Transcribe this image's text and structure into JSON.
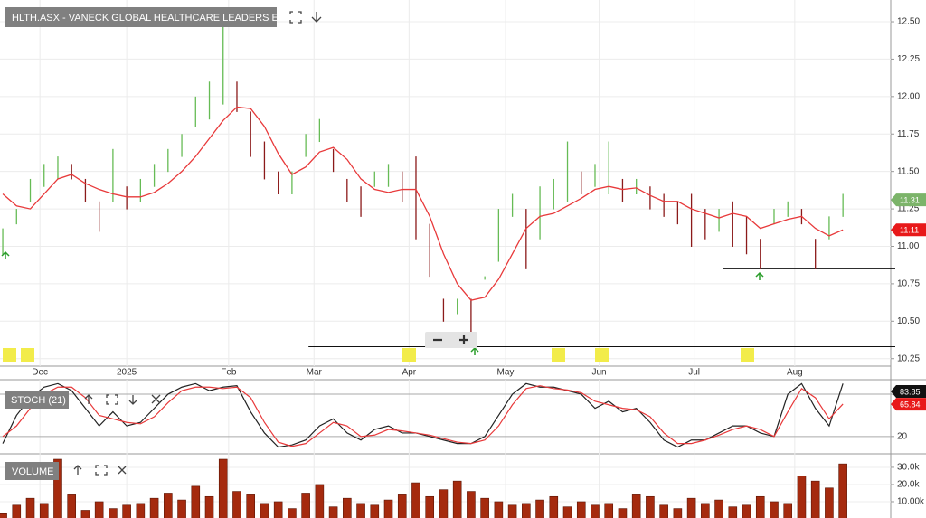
{
  "chart_data": [
    {
      "type": "ohlc",
      "title": "HLTH.ASX - VANECK GLOBAL HEALTHCARE LEADERS ETF",
      "xlim": [
        -0.2,
        64.47
      ],
      "xticks": [
        {
          "value": 2.7,
          "label": "Dec"
        },
        {
          "value": 9.0,
          "label": "2025"
        },
        {
          "value": 16.4,
          "label": "Feb"
        },
        {
          "value": 22.6,
          "label": "Mar"
        },
        {
          "value": 29.5,
          "label": "Apr"
        },
        {
          "value": 36.5,
          "label": "May"
        },
        {
          "value": 43.3,
          "label": "Jun"
        },
        {
          "value": 50.2,
          "label": "Jul"
        },
        {
          "value": 57.5,
          "label": "Aug"
        }
      ],
      "ylim": [
        10.2,
        12.645
      ],
      "yticks": [
        {
          "value": 12.5,
          "label": "12.50"
        },
        {
          "value": 12.25,
          "label": "12.25"
        },
        {
          "value": 12.0,
          "label": "12.00"
        },
        {
          "value": 11.75,
          "label": "11.75"
        },
        {
          "value": 11.5,
          "label": "11.50"
        },
        {
          "value": 11.25,
          "label": "11.25"
        },
        {
          "value": 11.0,
          "label": "11.00"
        },
        {
          "value": 10.75,
          "label": "10.75"
        },
        {
          "value": 10.5,
          "label": "10.50"
        },
        {
          "value": 10.25,
          "label": "10.25"
        }
      ],
      "grid": true,
      "up_color": "#66bb55",
      "down_color": "#8b1a1a",
      "high": [
        11.12,
        11.25,
        11.45,
        11.55,
        11.6,
        11.55,
        11.45,
        11.3,
        11.65,
        11.4,
        11.45,
        11.55,
        11.65,
        11.75,
        12.0,
        12.1,
        12.55,
        12.1,
        11.9,
        11.7,
        11.5,
        11.5,
        11.75,
        11.85,
        11.65,
        11.45,
        11.4,
        11.5,
        11.55,
        11.5,
        11.6,
        11.15,
        10.65,
        10.65,
        10.65,
        10.8,
        11.25,
        11.35,
        11.25,
        11.4,
        11.45,
        11.7,
        11.5,
        11.55,
        11.7,
        11.45,
        11.45,
        11.4,
        11.35,
        11.3,
        11.35,
        11.25,
        11.25,
        11.3,
        11.2,
        11.05,
        11.25,
        11.3,
        11.25,
        11.05,
        11.2,
        11.35
      ],
      "low": [
        10.95,
        11.15,
        11.3,
        11.4,
        11.45,
        11.45,
        11.3,
        11.1,
        11.3,
        11.25,
        11.3,
        11.4,
        11.5,
        11.6,
        11.8,
        11.85,
        11.95,
        11.9,
        11.6,
        11.45,
        11.35,
        11.35,
        11.6,
        11.7,
        11.5,
        11.3,
        11.2,
        11.4,
        11.4,
        11.3,
        11.05,
        10.8,
        10.5,
        10.55,
        10.35,
        10.78,
        10.9,
        11.2,
        10.85,
        11.05,
        11.25,
        11.3,
        11.35,
        11.4,
        11.35,
        11.3,
        11.35,
        11.25,
        11.2,
        11.15,
        11.0,
        11.05,
        11.1,
        11.0,
        10.95,
        10.85,
        11.15,
        11.2,
        11.15,
        10.85,
        11.05,
        11.2
      ],
      "ma": {
        "color": "#e8393a",
        "values": [
          11.35,
          11.27,
          11.25,
          11.35,
          11.45,
          11.48,
          11.42,
          11.38,
          11.35,
          11.33,
          11.33,
          11.36,
          11.42,
          11.5,
          11.6,
          11.72,
          11.84,
          11.93,
          11.92,
          11.8,
          11.62,
          11.48,
          11.53,
          11.63,
          11.66,
          11.58,
          11.45,
          11.38,
          11.36,
          11.38,
          11.38,
          11.2,
          10.95,
          10.75,
          10.64,
          10.66,
          10.78,
          10.95,
          11.12,
          11.2,
          11.22,
          11.27,
          11.32,
          11.38,
          11.4,
          11.38,
          11.39,
          11.34,
          11.3,
          11.3,
          11.25,
          11.22,
          11.19,
          11.22,
          11.2,
          11.12,
          11.15,
          11.18,
          11.2,
          11.12,
          11.07,
          11.11
        ]
      },
      "hlines": [
        {
          "value": 10.33,
          "from": 22.2
        },
        {
          "value": 10.85,
          "from": 52.3
        }
      ],
      "badges": [
        {
          "value": 11.31,
          "color": "#7cb46a"
        },
        {
          "value": 11.11,
          "color": "#e8191a"
        }
      ]
    },
    {
      "type": "line",
      "title": "STOCH (21)",
      "ylim": [
        -2,
        98
      ],
      "yticks": [
        20,
        80
      ],
      "grid": true,
      "series": [
        {
          "color": "#222222",
          "values": [
            10,
            50,
            75,
            90,
            95,
            85,
            60,
            35,
            55,
            35,
            40,
            60,
            80,
            90,
            95,
            85,
            90,
            92,
            55,
            25,
            5,
            8,
            15,
            35,
            45,
            25,
            15,
            30,
            35,
            25,
            25,
            20,
            15,
            10,
            10,
            20,
            50,
            80,
            95,
            90,
            90,
            85,
            80,
            60,
            70,
            55,
            60,
            40,
            15,
            5,
            15,
            15,
            25,
            35,
            35,
            25,
            20,
            80,
            95,
            60,
            35,
            95
          ]
        },
        {
          "color": "#e8393a",
          "values": [
            20,
            35,
            60,
            80,
            90,
            90,
            75,
            50,
            45,
            40,
            38,
            48,
            68,
            85,
            90,
            90,
            88,
            90,
            75,
            40,
            12,
            6,
            10,
            25,
            40,
            35,
            20,
            22,
            30,
            28,
            25,
            22,
            17,
            12,
            10,
            15,
            35,
            65,
            88,
            92,
            88,
            86,
            82,
            70,
            65,
            60,
            58,
            48,
            25,
            10,
            10,
            15,
            22,
            30,
            35,
            30,
            20,
            55,
            88,
            75,
            45,
            66
          ]
        }
      ],
      "badges": [
        {
          "value": 83.85,
          "color": "#111111"
        },
        {
          "value": 65.84,
          "color": "#e8191a"
        }
      ]
    },
    {
      "type": "bar",
      "title": "VOLUME",
      "ylim": [
        0,
        34700
      ],
      "yticks": [
        {
          "value": 30000,
          "label": "30.0k"
        },
        {
          "value": 20000,
          "label": "20.0k"
        },
        {
          "value": 10000,
          "label": "10.00k"
        }
      ],
      "color": "#a52a0e",
      "values": [
        3000,
        8000,
        12000,
        9000,
        36000,
        14000,
        5000,
        10000,
        6000,
        8000,
        9000,
        12000,
        15000,
        11000,
        19000,
        13000,
        38000,
        16000,
        14000,
        9000,
        10000,
        6000,
        15000,
        20000,
        7000,
        12000,
        9000,
        8000,
        11000,
        14000,
        21000,
        13000,
        17000,
        22000,
        16000,
        12000,
        10000,
        8000,
        9000,
        11000,
        13000,
        7000,
        10000,
        8000,
        9000,
        6000,
        14000,
        13000,
        8000,
        6000,
        12000,
        9000,
        11000,
        7000,
        8000,
        13000,
        10000,
        9000,
        25000,
        22000,
        18000,
        32000
      ]
    }
  ]
}
